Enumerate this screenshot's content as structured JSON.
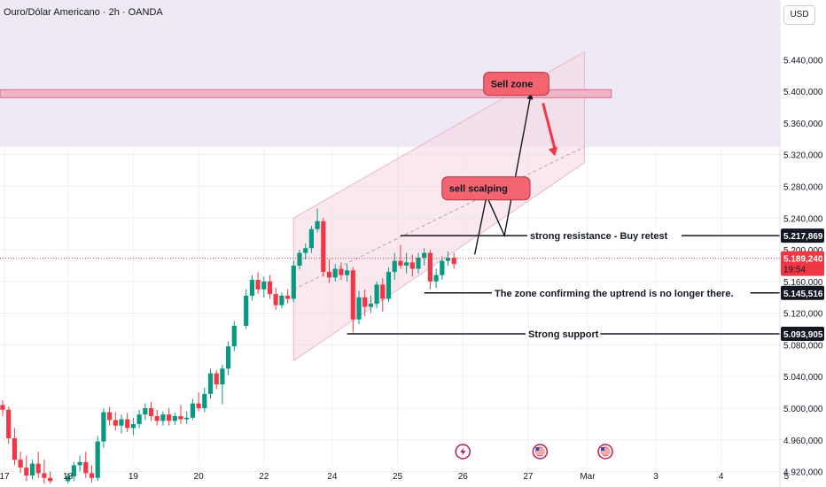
{
  "header": {
    "symbol_title": "Ouro/Dólar Americano · 2h · OANDA",
    "currency_button": "USD"
  },
  "colors": {
    "up": "#089981",
    "down": "#f23645",
    "grid": "#eef0f4",
    "channel_fill": "#f4d7e2",
    "sell_zone_fill": "#f0b5c7",
    "callout_fill": "#f2646f",
    "price_line": "#f23645",
    "background_band": "#efe9f6"
  },
  "chart_data": {
    "type": "candlestick",
    "title": "Ouro/Dólar Americano · 2h · OANDA",
    "y_axis": {
      "side": "right",
      "ylim": [
        4905000,
        5475000
      ],
      "ticks": [
        {
          "value": 5440000,
          "label": "5.440,000"
        },
        {
          "value": 5400000,
          "label": "5.400,000"
        },
        {
          "value": 5360000,
          "label": "5.360,000"
        },
        {
          "value": 5320000,
          "label": "5.320,000"
        },
        {
          "value": 5280000,
          "label": "5.280,000"
        },
        {
          "value": 5240000,
          "label": "5.240,000"
        },
        {
          "value": 5200000,
          "label": "5.200,000"
        },
        {
          "value": 5160000,
          "label": "5.160,000"
        },
        {
          "value": 5120000,
          "label": "5.120,000"
        },
        {
          "value": 5080000,
          "label": "5.080,000"
        },
        {
          "value": 5040000,
          "label": "5.040,000"
        },
        {
          "value": 5000000,
          "label": "5.000,000"
        },
        {
          "value": 4960000,
          "label": "4.960,000"
        },
        {
          "value": 4920000,
          "label": "4.920,000"
        }
      ]
    },
    "x_axis": {
      "ticks": [
        {
          "label": "17",
          "x": 0.3
        },
        {
          "label": "18",
          "x": 11
        },
        {
          "label": "19",
          "x": 22
        },
        {
          "label": "20",
          "x": 33
        },
        {
          "label": "22",
          "x": 44
        },
        {
          "label": "24",
          "x": 55.5
        },
        {
          "label": "25",
          "x": 66.5
        },
        {
          "label": "26",
          "x": 77.5
        },
        {
          "label": "27",
          "x": 88.5
        },
        {
          "label": "Mar",
          "x": 98.5
        },
        {
          "label": "3",
          "x": 110
        },
        {
          "label": "4",
          "x": 121
        },
        {
          "label": "5",
          "x": 132
        }
      ]
    },
    "candles": [
      {
        "x": 0,
        "o": 5004000,
        "h": 5010000,
        "c": 4998000,
        "l": 4990000
      },
      {
        "x": 1,
        "o": 4998000,
        "h": 5002000,
        "c": 4962000,
        "l": 4955000
      },
      {
        "x": 2,
        "o": 4962000,
        "h": 4975000,
        "c": 4935000,
        "l": 4928000
      },
      {
        "x": 3,
        "o": 4935000,
        "h": 4945000,
        "c": 4925000,
        "l": 4918000
      },
      {
        "x": 4,
        "o": 4925000,
        "h": 4940000,
        "c": 4915000,
        "l": 4908000
      },
      {
        "x": 5,
        "o": 4915000,
        "h": 4935000,
        "c": 4930000,
        "l": 4910000
      },
      {
        "x": 6,
        "o": 4930000,
        "h": 4945000,
        "c": 4918000,
        "l": 4912000
      },
      {
        "x": 7,
        "o": 4918000,
        "h": 4935000,
        "c": 4912000,
        "l": 4905000
      },
      {
        "x": 8,
        "o": 4912000,
        "h": 4920000,
        "c": 4908000,
        "l": 4905000
      },
      {
        "x": 11,
        "o": 4908000,
        "h": 4918000,
        "c": 4914000,
        "l": 4905000
      },
      {
        "x": 12,
        "o": 4914000,
        "h": 4932000,
        "c": 4928000,
        "l": 4908000
      },
      {
        "x": 13,
        "o": 4928000,
        "h": 4940000,
        "c": 4932000,
        "l": 4920000
      },
      {
        "x": 14,
        "o": 4932000,
        "h": 4945000,
        "c": 4918000,
        "l": 4912000
      },
      {
        "x": 15,
        "o": 4918000,
        "h": 4928000,
        "c": 4912000,
        "l": 4906000
      },
      {
        "x": 16,
        "o": 4912000,
        "h": 4965000,
        "c": 4958000,
        "l": 4908000
      },
      {
        "x": 17,
        "o": 4958000,
        "h": 5000000,
        "c": 4995000,
        "l": 4950000
      },
      {
        "x": 18,
        "o": 4995000,
        "h": 5002000,
        "c": 4985000,
        "l": 4978000
      },
      {
        "x": 19,
        "o": 4985000,
        "h": 4995000,
        "c": 4978000,
        "l": 4972000
      },
      {
        "x": 20,
        "o": 4978000,
        "h": 4992000,
        "c": 4986000,
        "l": 4968000
      },
      {
        "x": 21,
        "o": 4986000,
        "h": 4994000,
        "c": 4975000,
        "l": 4970000
      },
      {
        "x": 22,
        "o": 4975000,
        "h": 4988000,
        "c": 4980000,
        "l": 4966000
      },
      {
        "x": 23,
        "o": 4980000,
        "h": 4998000,
        "c": 4992000,
        "l": 4975000
      },
      {
        "x": 24,
        "o": 4992000,
        "h": 5006000,
        "c": 5000000,
        "l": 4985000
      },
      {
        "x": 25,
        "o": 5000000,
        "h": 5008000,
        "c": 4990000,
        "l": 4984000
      },
      {
        "x": 26,
        "o": 4990000,
        "h": 4998000,
        "c": 4984000,
        "l": 4978000
      },
      {
        "x": 27,
        "o": 4984000,
        "h": 4996000,
        "c": 4992000,
        "l": 4978000
      },
      {
        "x": 28,
        "o": 4992000,
        "h": 5000000,
        "c": 4984000,
        "l": 4978000
      },
      {
        "x": 29,
        "o": 4984000,
        "h": 4994000,
        "c": 4990000,
        "l": 4979000
      },
      {
        "x": 30,
        "o": 4990000,
        "h": 5004000,
        "c": 4986000,
        "l": 4980000
      },
      {
        "x": 31,
        "o": 4986000,
        "h": 4996000,
        "c": 4988000,
        "l": 4980000
      },
      {
        "x": 32,
        "o": 4988000,
        "h": 5012000,
        "c": 5006000,
        "l": 4985000
      },
      {
        "x": 33,
        "o": 5006000,
        "h": 5020000,
        "c": 5000000,
        "l": 4996000
      },
      {
        "x": 34,
        "o": 5000000,
        "h": 5026000,
        "c": 5018000,
        "l": 4995000
      },
      {
        "x": 35,
        "o": 5018000,
        "h": 5050000,
        "c": 5044000,
        "l": 5012000
      },
      {
        "x": 36,
        "o": 5044000,
        "h": 5048000,
        "c": 5030000,
        "l": 5024000
      },
      {
        "x": 37,
        "o": 5030000,
        "h": 5055000,
        "c": 5050000,
        "l": 5005000
      },
      {
        "x": 38,
        "o": 5050000,
        "h": 5084000,
        "c": 5078000,
        "l": 5042000
      },
      {
        "x": 39,
        "o": 5078000,
        "h": 5110000,
        "c": 5104000,
        "l": 5072000
      },
      {
        "x": 41,
        "o": 5104000,
        "h": 5150000,
        "c": 5142000,
        "l": 5100000
      },
      {
        "x": 42,
        "o": 5142000,
        "h": 5168000,
        "c": 5162000,
        "l": 5136000
      },
      {
        "x": 43,
        "o": 5162000,
        "h": 5172000,
        "c": 5150000,
        "l": 5144000
      },
      {
        "x": 44,
        "o": 5150000,
        "h": 5166000,
        "c": 5160000,
        "l": 5140000
      },
      {
        "x": 45,
        "o": 5160000,
        "h": 5168000,
        "c": 5144000,
        "l": 5138000
      },
      {
        "x": 46,
        "o": 5144000,
        "h": 5152000,
        "c": 5130000,
        "l": 5124000
      },
      {
        "x": 47,
        "o": 5130000,
        "h": 5146000,
        "c": 5142000,
        "l": 5126000
      },
      {
        "x": 48,
        "o": 5142000,
        "h": 5150000,
        "c": 5138000,
        "l": 5132000
      },
      {
        "x": 49,
        "o": 5138000,
        "h": 5186000,
        "c": 5180000,
        "l": 5134000
      },
      {
        "x": 50,
        "o": 5180000,
        "h": 5200000,
        "c": 5196000,
        "l": 5175000
      },
      {
        "x": 51,
        "o": 5196000,
        "h": 5208000,
        "c": 5202000,
        "l": 5188000
      },
      {
        "x": 52,
        "o": 5202000,
        "h": 5230000,
        "c": 5226000,
        "l": 5196000
      },
      {
        "x": 53,
        "o": 5226000,
        "h": 5252000,
        "c": 5236000,
        "l": 5222000
      },
      {
        "x": 54,
        "o": 5236000,
        "h": 5240000,
        "c": 5172000,
        "l": 5166000
      },
      {
        "x": 55,
        "o": 5172000,
        "h": 5188000,
        "c": 5165000,
        "l": 5158000
      },
      {
        "x": 56,
        "o": 5165000,
        "h": 5182000,
        "c": 5176000,
        "l": 5160000
      },
      {
        "x": 57,
        "o": 5176000,
        "h": 5184000,
        "c": 5168000,
        "l": 5162000
      },
      {
        "x": 58,
        "o": 5168000,
        "h": 5182000,
        "c": 5174000,
        "l": 5160000
      },
      {
        "x": 59,
        "o": 5174000,
        "h": 5178000,
        "c": 5112000,
        "l": 5096000
      },
      {
        "x": 60,
        "o": 5112000,
        "h": 5148000,
        "c": 5140000,
        "l": 5106000
      },
      {
        "x": 61,
        "o": 5140000,
        "h": 5150000,
        "c": 5128000,
        "l": 5116000
      },
      {
        "x": 62,
        "o": 5128000,
        "h": 5142000,
        "c": 5132000,
        "l": 5120000
      },
      {
        "x": 63,
        "o": 5132000,
        "h": 5160000,
        "c": 5156000,
        "l": 5126000
      },
      {
        "x": 64,
        "o": 5156000,
        "h": 5164000,
        "c": 5138000,
        "l": 5122000
      },
      {
        "x": 65,
        "o": 5138000,
        "h": 5178000,
        "c": 5172000,
        "l": 5134000
      },
      {
        "x": 66,
        "o": 5172000,
        "h": 5196000,
        "c": 5186000,
        "l": 5162000
      },
      {
        "x": 67,
        "o": 5186000,
        "h": 5206000,
        "c": 5180000,
        "l": 5176000
      },
      {
        "x": 68,
        "o": 5180000,
        "h": 5196000,
        "c": 5184000,
        "l": 5170000
      },
      {
        "x": 69,
        "o": 5184000,
        "h": 5194000,
        "c": 5176000,
        "l": 5166000
      },
      {
        "x": 70,
        "o": 5176000,
        "h": 5196000,
        "c": 5190000,
        "l": 5170000
      },
      {
        "x": 71,
        "o": 5190000,
        "h": 5202000,
        "c": 5196000,
        "l": 5180000
      },
      {
        "x": 72,
        "o": 5196000,
        "h": 5200000,
        "c": 5160000,
        "l": 5150000
      },
      {
        "x": 73,
        "o": 5160000,
        "h": 5176000,
        "c": 5168000,
        "l": 5152000
      },
      {
        "x": 74,
        "o": 5168000,
        "h": 5192000,
        "c": 5186000,
        "l": 5162000
      },
      {
        "x": 75,
        "o": 5186000,
        "h": 5198000,
        "c": 5190000,
        "l": 5180000
      },
      {
        "x": 76,
        "o": 5190000,
        "h": 5196000,
        "c": 5182000,
        "l": 5176000
      }
    ],
    "current_price": {
      "value": 5189240,
      "label": "5.189,240",
      "countdown": "19:54"
    },
    "levels": [
      {
        "name": "resistance",
        "value": 5217869,
        "label": "5.217,869",
        "text": "strong resistance - Buy retest",
        "x_start": 67
      },
      {
        "name": "uptrend-zone",
        "value": 5145516,
        "label": "5.145,516",
        "text": "The zone confirming the uptrend is no longer there.",
        "x_start": 71
      },
      {
        "name": "support",
        "value": 5093905,
        "label": "5.093,905",
        "text": "Strong support",
        "x_start": 58
      }
    ],
    "sell_zone": {
      "y_low": 5392000,
      "y_high": 5402000,
      "x_end": 102.5,
      "label": "Sell zone"
    },
    "channel": {
      "x_start": 49,
      "x_end": 98,
      "lower_start": 5060000,
      "lower_end": 5310000,
      "upper_start": 5240000,
      "upper_end": 5450000,
      "mid_start": 5150000,
      "mid_end": 5330000
    },
    "forecast_path": [
      {
        "x": 79.5,
        "y": 5194000
      },
      {
        "x": 81.5,
        "y": 5268000
      },
      {
        "x": 84.5,
        "y": 5218000
      },
      {
        "x": 89,
        "y": 5398000
      }
    ],
    "sell_arrow": {
      "x_start": 91,
      "y_start": 5385000,
      "x_end": 93,
      "y_end": 5318000
    },
    "callouts": [
      {
        "name": "sell-scalping",
        "text": "sell scalping",
        "x": 74,
        "y": 5292000,
        "pointer_x": 80,
        "pointer_y": 5264000
      },
      {
        "name": "sell-zone",
        "text": "Sell zone",
        "x": 81,
        "y": 5424000,
        "pointer_x": 89,
        "pointer_y": 5402000
      }
    ],
    "events": [
      {
        "name": "flash-event-icon",
        "x": 77.5
      },
      {
        "name": "us-flag-event-icon",
        "x": 90.5
      },
      {
        "name": "us-flag-event-icon-2",
        "x": 101.5
      }
    ]
  }
}
